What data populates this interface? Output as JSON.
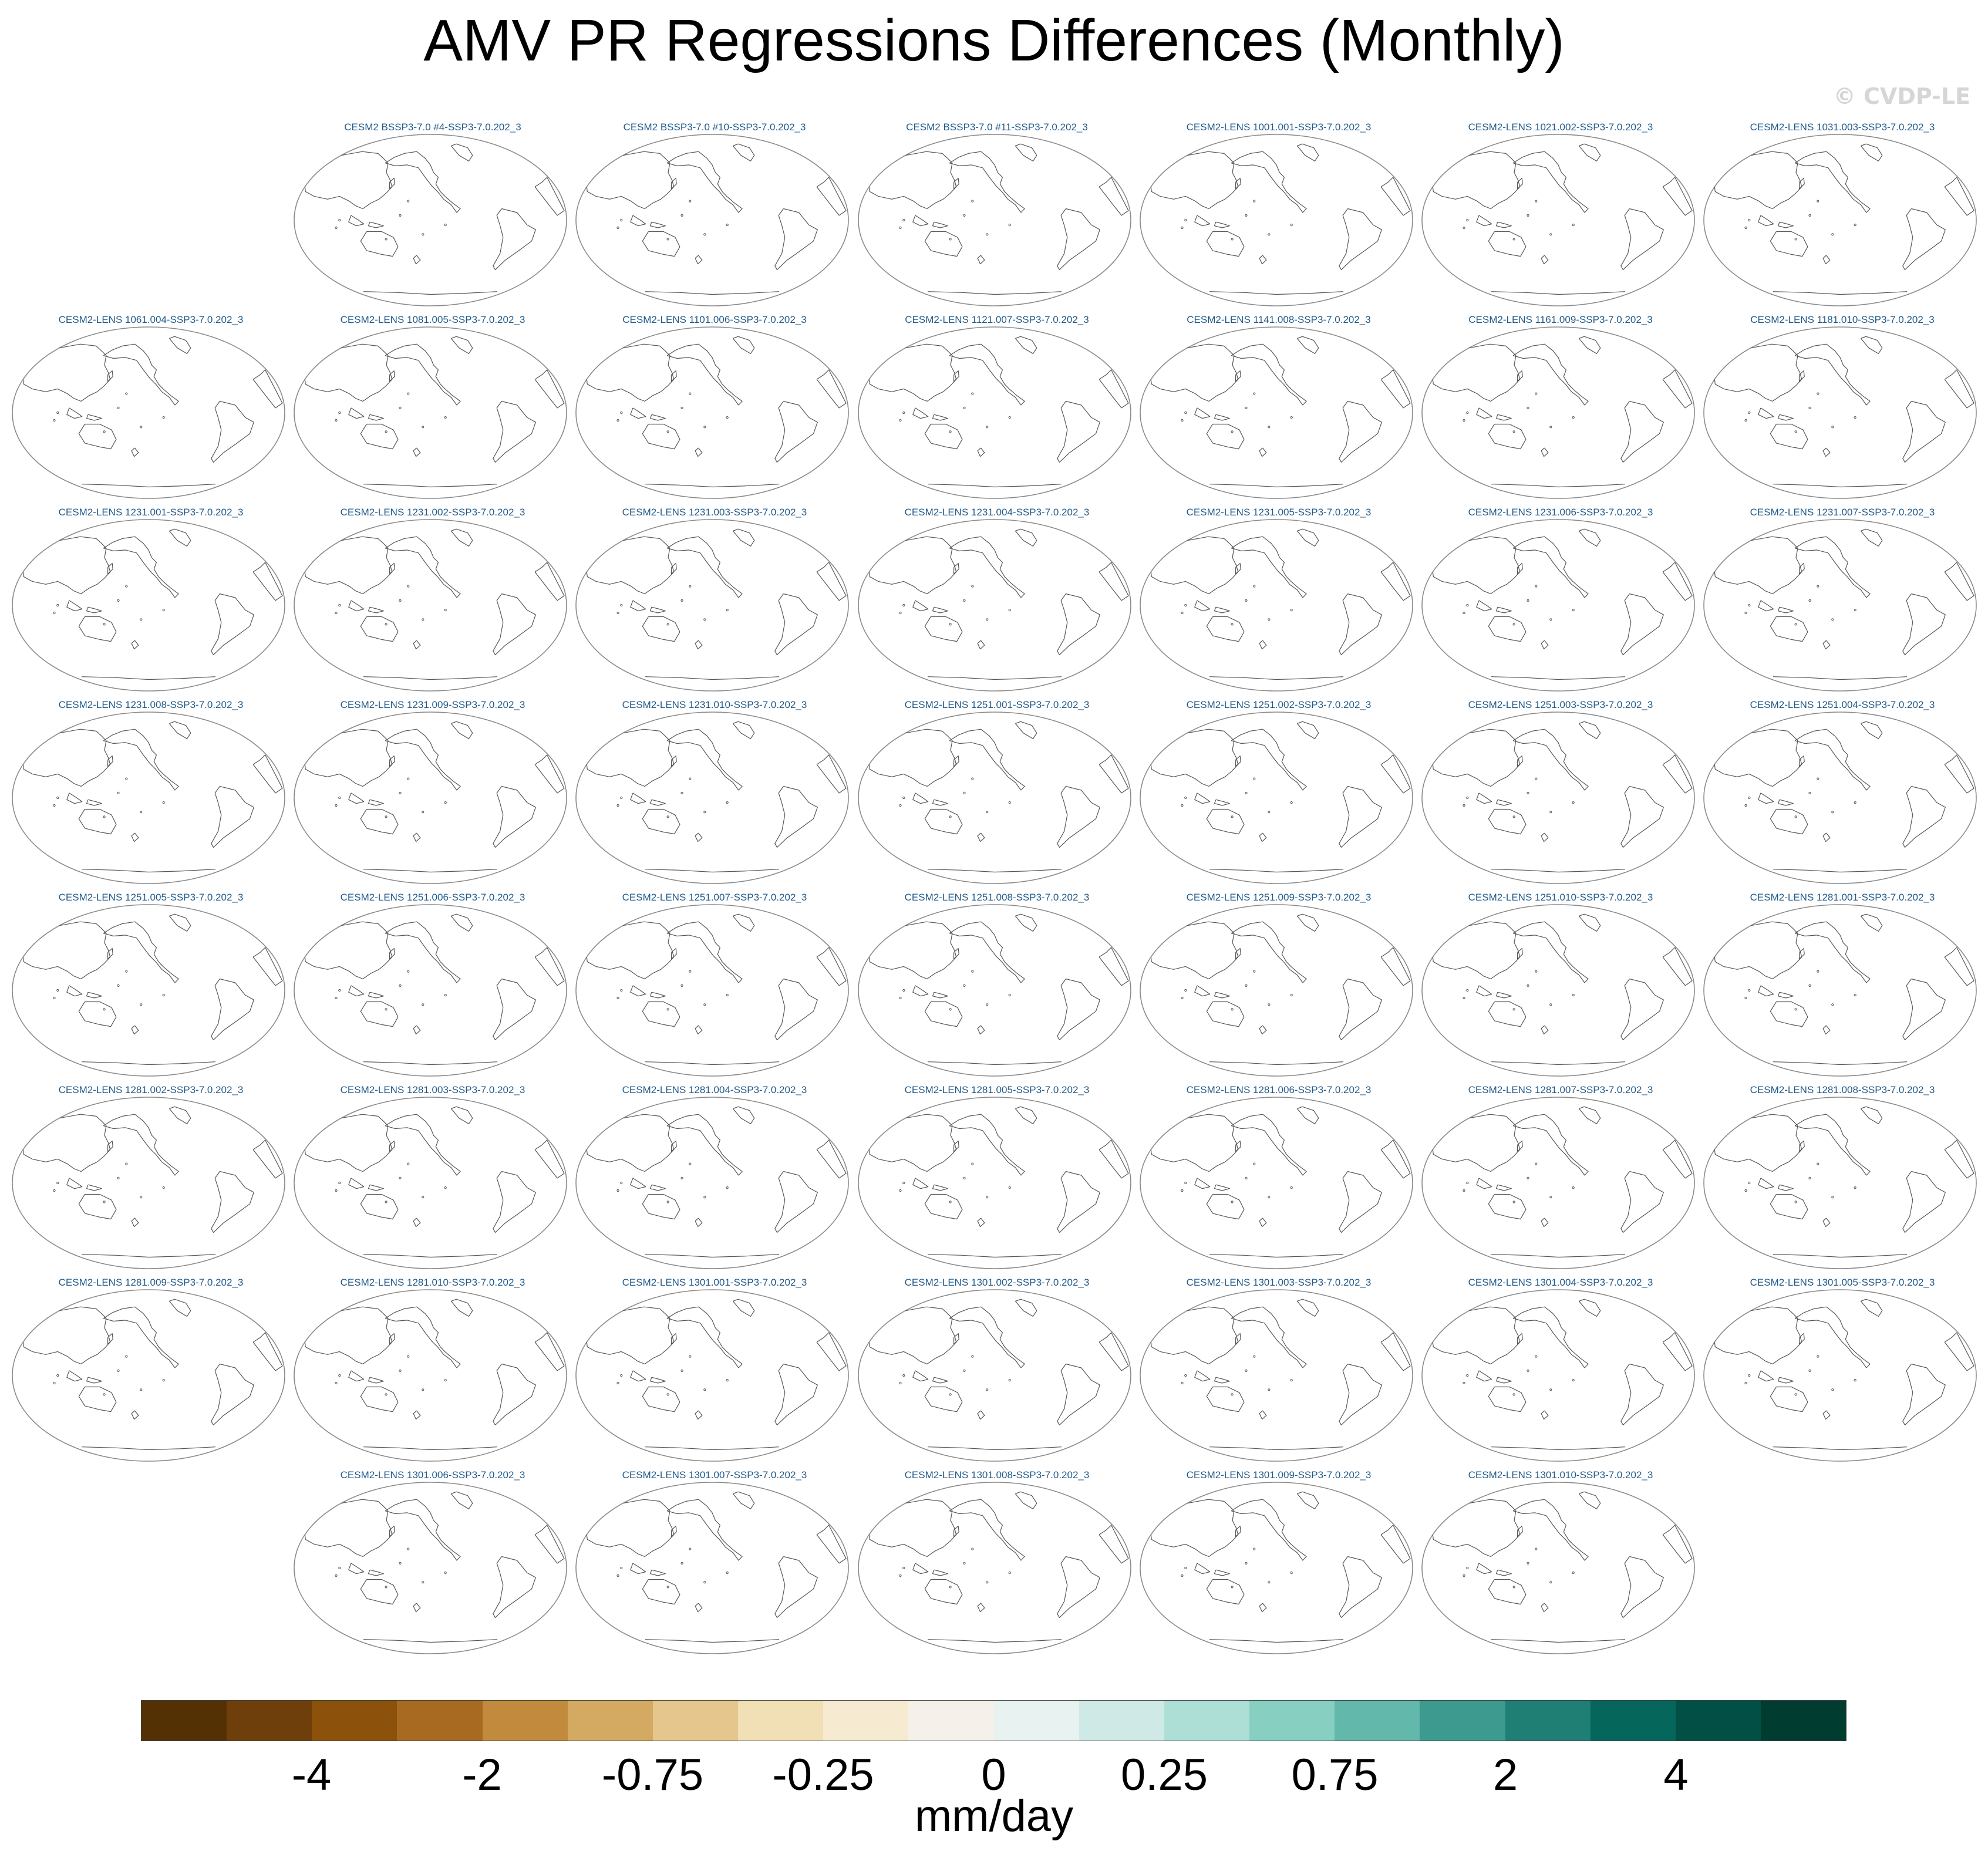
{
  "title": "AMV PR Regressions Differences (Monthly)",
  "watermark": "© CVDP-LE",
  "panels": [
    {
      "label": "CESM2 BSSP3-7.0 #4-SSP3-7.0.202_3"
    },
    {
      "label": "CESM2 BSSP3-7.0 #10-SSP3-7.0.202_3"
    },
    {
      "label": "CESM2 BSSP3-7.0 #11-SSP3-7.0.202_3"
    },
    {
      "label": "CESM2-LENS 1001.001-SSP3-7.0.202_3"
    },
    {
      "label": "CESM2-LENS 1021.002-SSP3-7.0.202_3"
    },
    {
      "label": "CESM2-LENS 1031.003-SSP3-7.0.202_3"
    },
    {
      "label": "CESM2-LENS 1061.004-SSP3-7.0.202_3"
    },
    {
      "label": "CESM2-LENS 1081.005-SSP3-7.0.202_3"
    },
    {
      "label": "CESM2-LENS 1101.006-SSP3-7.0.202_3"
    },
    {
      "label": "CESM2-LENS 1121.007-SSP3-7.0.202_3"
    },
    {
      "label": "CESM2-LENS 1141.008-SSP3-7.0.202_3"
    },
    {
      "label": "CESM2-LENS 1161.009-SSP3-7.0.202_3"
    },
    {
      "label": "CESM2-LENS 1181.010-SSP3-7.0.202_3"
    },
    {
      "label": "CESM2-LENS 1231.001-SSP3-7.0.202_3"
    },
    {
      "label": "CESM2-LENS 1231.002-SSP3-7.0.202_3"
    },
    {
      "label": "CESM2-LENS 1231.003-SSP3-7.0.202_3"
    },
    {
      "label": "CESM2-LENS 1231.004-SSP3-7.0.202_3"
    },
    {
      "label": "CESM2-LENS 1231.005-SSP3-7.0.202_3"
    },
    {
      "label": "CESM2-LENS 1231.006-SSP3-7.0.202_3"
    },
    {
      "label": "CESM2-LENS 1231.007-SSP3-7.0.202_3"
    },
    {
      "label": "CESM2-LENS 1231.008-SSP3-7.0.202_3"
    },
    {
      "label": "CESM2-LENS 1231.009-SSP3-7.0.202_3"
    },
    {
      "label": "CESM2-LENS 1231.010-SSP3-7.0.202_3"
    },
    {
      "label": "CESM2-LENS 1251.001-SSP3-7.0.202_3"
    },
    {
      "label": "CESM2-LENS 1251.002-SSP3-7.0.202_3"
    },
    {
      "label": "CESM2-LENS 1251.003-SSP3-7.0.202_3"
    },
    {
      "label": "CESM2-LENS 1251.004-SSP3-7.0.202_3"
    },
    {
      "label": "CESM2-LENS 1251.005-SSP3-7.0.202_3"
    },
    {
      "label": "CESM2-LENS 1251.006-SSP3-7.0.202_3"
    },
    {
      "label": "CESM2-LENS 1251.007-SSP3-7.0.202_3"
    },
    {
      "label": "CESM2-LENS 1251.008-SSP3-7.0.202_3"
    },
    {
      "label": "CESM2-LENS 1251.009-SSP3-7.0.202_3"
    },
    {
      "label": "CESM2-LENS 1251.010-SSP3-7.0.202_3"
    },
    {
      "label": "CESM2-LENS 1281.001-SSP3-7.0.202_3"
    },
    {
      "label": "CESM2-LENS 1281.002-SSP3-7.0.202_3"
    },
    {
      "label": "CESM2-LENS 1281.003-SSP3-7.0.202_3"
    },
    {
      "label": "CESM2-LENS 1281.004-SSP3-7.0.202_3"
    },
    {
      "label": "CESM2-LENS 1281.005-SSP3-7.0.202_3"
    },
    {
      "label": "CESM2-LENS 1281.006-SSP3-7.0.202_3"
    },
    {
      "label": "CESM2-LENS 1281.007-SSP3-7.0.202_3"
    },
    {
      "label": "CESM2-LENS 1281.008-SSP3-7.0.202_3"
    },
    {
      "label": "CESM2-LENS 1281.009-SSP3-7.0.202_3"
    },
    {
      "label": "CESM2-LENS 1281.010-SSP3-7.0.202_3"
    },
    {
      "label": "CESM2-LENS 1301.001-SSP3-7.0.202_3"
    },
    {
      "label": "CESM2-LENS 1301.002-SSP3-7.0.202_3"
    },
    {
      "label": "CESM2-LENS 1301.003-SSP3-7.0.202_3"
    },
    {
      "label": "CESM2-LENS 1301.004-SSP3-7.0.202_3"
    },
    {
      "label": "CESM2-LENS 1301.005-SSP3-7.0.202_3"
    },
    {
      "label": "CESM2-LENS 1301.006-SSP3-7.0.202_3"
    },
    {
      "label": "CESM2-LENS 1301.007-SSP3-7.0.202_3"
    },
    {
      "label": "CESM2-LENS 1301.008-SSP3-7.0.202_3"
    },
    {
      "label": "CESM2-LENS 1301.009-SSP3-7.0.202_3"
    },
    {
      "label": "CESM2-LENS 1301.010-SSP3-7.0.202_3"
    }
  ],
  "colorbar": {
    "units": "mm/day",
    "colors": [
      "#543005",
      "#6e3f0b",
      "#8c510a",
      "#a86a21",
      "#c28a3c",
      "#d4aa62",
      "#e5c78d",
      "#f1dfb5",
      "#f6ead0",
      "#f5f1ea",
      "#e8f2f0",
      "#cfeae6",
      "#aedfd7",
      "#87cfc1",
      "#62b8aa",
      "#3c9a8e",
      "#1f7f74",
      "#05665c",
      "#024f46",
      "#003c30"
    ],
    "tick_labels": [
      "-4",
      "-2",
      "-0.75",
      "-0.25",
      "0",
      "0.25",
      "0.75",
      "2",
      "4"
    ]
  }
}
